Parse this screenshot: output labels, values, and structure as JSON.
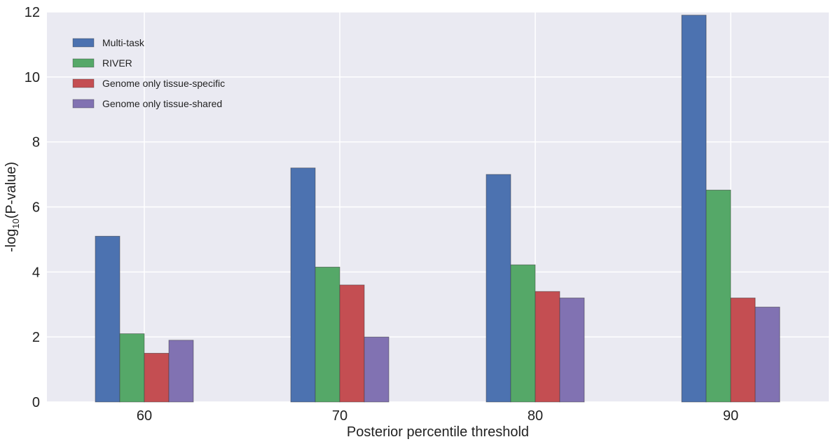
{
  "chart_data": {
    "type": "bar",
    "categories": [
      "60",
      "70",
      "80",
      "90"
    ],
    "series": [
      {
        "name": "Multi-task",
        "color": "#4C72B0",
        "values": [
          5.1,
          7.2,
          7.0,
          11.9
        ]
      },
      {
        "name": "RIVER",
        "color": "#55A868",
        "values": [
          2.1,
          4.15,
          4.22,
          6.52
        ]
      },
      {
        "name": "Genome only tissue-specific",
        "color": "#C44E52",
        "values": [
          1.5,
          3.6,
          3.4,
          3.2
        ]
      },
      {
        "name": "Genome only tissue-shared",
        "color": "#8172B2",
        "values": [
          1.9,
          2.0,
          3.2,
          2.92
        ]
      }
    ],
    "xlabel": "Posterior percentile threshold",
    "ylabel_prefix": "-log",
    "ylabel_sub": "10",
    "ylabel_suffix": "(P-value)",
    "ylim": [
      0,
      12
    ],
    "yticks": [
      "0",
      "2",
      "4",
      "6",
      "8",
      "10",
      "12"
    ],
    "grid": true,
    "background": "#EAEAF2",
    "legend_position": "top-left"
  }
}
